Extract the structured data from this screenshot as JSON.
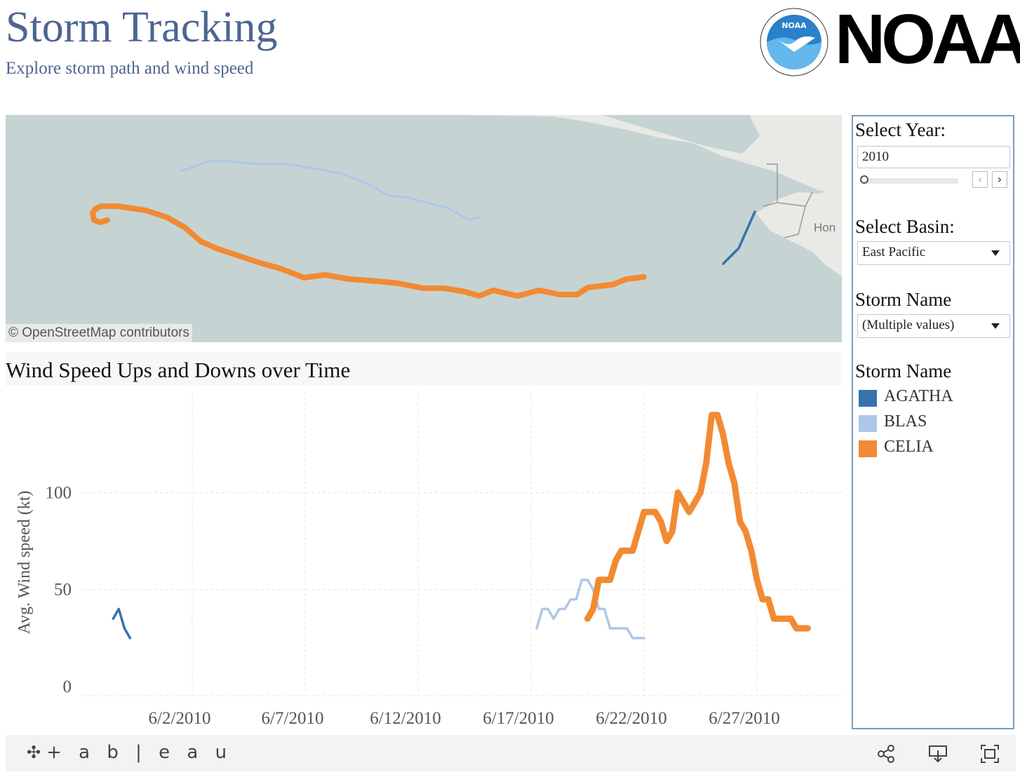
{
  "header": {
    "title": "Storm Tracking",
    "subtitle": "Explore storm path and wind speed"
  },
  "logo": {
    "text": "NOAA",
    "seal_text": "NOAA"
  },
  "map": {
    "attribution": "© OpenStreetMap contributors",
    "place_label": "Hon"
  },
  "chart_section": {
    "title": "Wind Speed Ups and Downs over Time"
  },
  "controls": {
    "year_label": "Select Year:",
    "year_value": "2010",
    "prev_icon": "chevron-left-icon",
    "next_icon": "chevron-right-icon",
    "basin_label": "Select Basin:",
    "basin_value": "East Pacific",
    "storm_name_label": "Storm Name",
    "storm_name_value": "(Multiple values)",
    "legend_title": "Storm Name",
    "legend": [
      {
        "name": "AGATHA",
        "color": "#3a72ab"
      },
      {
        "name": "BLAS",
        "color": "#aec7e8"
      },
      {
        "name": "CELIA",
        "color": "#f28a33"
      }
    ]
  },
  "footer": {
    "brand": "+ a b | e a u",
    "icons": [
      "share-icon",
      "download-icon",
      "fullscreen-icon"
    ]
  },
  "chart_data": {
    "type": "line",
    "title": "Wind Speed Ups and Downs over Time",
    "xlabel": "",
    "ylabel": "Avg. Wind speed (kt)",
    "x_ticks": [
      "6/2/2010",
      "6/7/2010",
      "6/12/2010",
      "6/17/2010",
      "6/22/2010",
      "6/27/2010"
    ],
    "y_ticks": [
      0,
      50,
      100
    ],
    "ylim": [
      0,
      145
    ],
    "grid": true,
    "series": [
      {
        "name": "AGATHA",
        "color": "#3a72ab",
        "x": [
          "5/29/2010 12:00",
          "5/29/2010 18:00",
          "5/30/2010 00:00",
          "5/30/2010 06:00"
        ],
        "values": [
          35,
          40,
          30,
          25
        ]
      },
      {
        "name": "BLAS",
        "color": "#aec7e8",
        "x": [
          "6/17/2010 06:00",
          "6/17/2010 12:00",
          "6/17/2010 18:00",
          "6/18/2010 00:00",
          "6/18/2010 06:00",
          "6/18/2010 12:00",
          "6/18/2010 18:00",
          "6/19/2010 00:00",
          "6/19/2010 06:00",
          "6/19/2010 12:00",
          "6/19/2010 18:00",
          "6/20/2010 00:00",
          "6/20/2010 06:00",
          "6/20/2010 12:00",
          "6/20/2010 18:00",
          "6/21/2010 00:00",
          "6/21/2010 06:00",
          "6/21/2010 12:00",
          "6/21/2010 18:00",
          "6/22/2010 00:00"
        ],
        "values": [
          30,
          40,
          40,
          35,
          40,
          40,
          45,
          45,
          55,
          55,
          50,
          40,
          40,
          30,
          30,
          30,
          30,
          25,
          25,
          25
        ]
      },
      {
        "name": "CELIA",
        "color": "#f28a33",
        "x": [
          "6/19/2010 12:00",
          "6/19/2010 18:00",
          "6/20/2010 00:00",
          "6/20/2010 06:00",
          "6/20/2010 12:00",
          "6/20/2010 18:00",
          "6/21/2010 00:00",
          "6/21/2010 06:00",
          "6/21/2010 12:00",
          "6/22/2010 00:00",
          "6/22/2010 06:00",
          "6/22/2010 12:00",
          "6/22/2010 18:00",
          "6/23/2010 00:00",
          "6/23/2010 06:00",
          "6/23/2010 12:00",
          "6/24/2010 00:00",
          "6/24/2010 06:00",
          "6/24/2010 12:00",
          "6/24/2010 18:00",
          "6/25/2010 00:00",
          "6/25/2010 06:00",
          "6/25/2010 12:00",
          "6/25/2010 18:00",
          "6/26/2010 00:00",
          "6/26/2010 06:00",
          "6/26/2010 12:00",
          "6/26/2010 18:00",
          "6/27/2010 00:00",
          "6/27/2010 06:00",
          "6/27/2010 12:00",
          "6/27/2010 18:00",
          "6/28/2010 00:00",
          "6/28/2010 06:00",
          "6/28/2010 12:00",
          "6/28/2010 18:00",
          "6/29/2010 00:00",
          "6/29/2010 06:00"
        ],
        "values": [
          35,
          40,
          55,
          55,
          55,
          65,
          70,
          70,
          70,
          90,
          90,
          90,
          85,
          75,
          80,
          100,
          90,
          95,
          100,
          115,
          140,
          140,
          130,
          115,
          105,
          85,
          80,
          70,
          55,
          45,
          45,
          35,
          35,
          35,
          35,
          30,
          30,
          30
        ]
      }
    ]
  }
}
